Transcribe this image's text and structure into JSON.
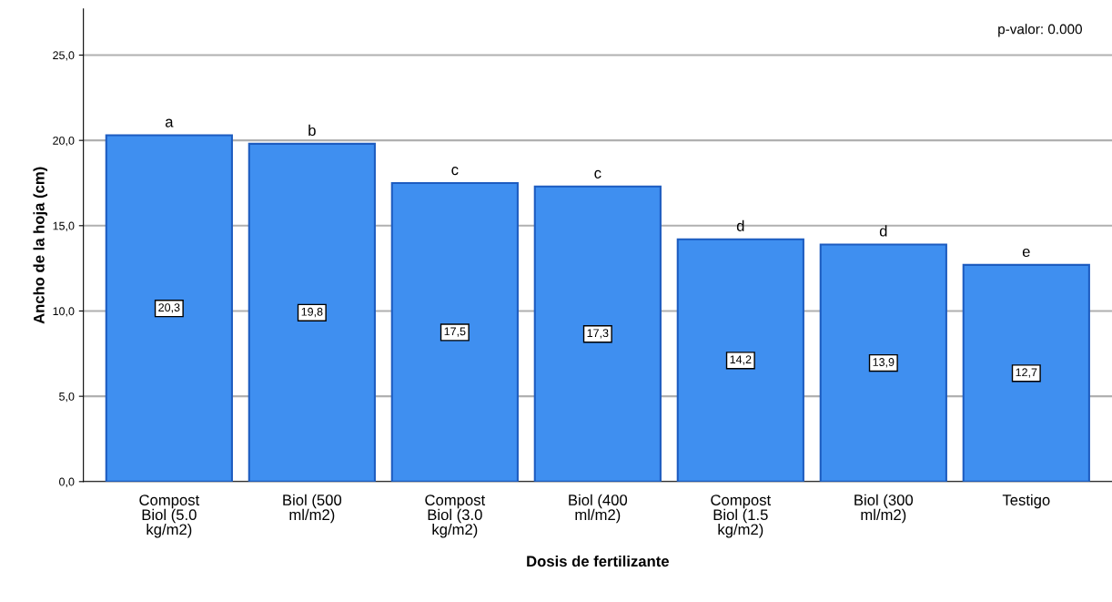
{
  "chart_data": {
    "type": "bar",
    "xlabel": "Dosis de fertilizante",
    "ylabel": "Ancho de la hoja (cm)",
    "categories": [
      "Compost\nBiol (5.0\nkg/m2)",
      "Biol (500\nml/m2)",
      "Compost\nBiol (3.0\nkg/m2)",
      "Biol (400\nml/m2)",
      "Compost\nBiol (1.5\nkg/m2)",
      "Biol (300\nml/m2)",
      "Testigo"
    ],
    "values": [
      20.3,
      19.8,
      17.5,
      17.3,
      14.2,
      13.9,
      12.7
    ],
    "value_labels": [
      "20,3",
      "19,8",
      "17,5",
      "17,3",
      "14,2",
      "13,9",
      "12,7"
    ],
    "color": "#3f8ff0",
    "ylim": [
      0,
      27.7
    ],
    "yticks": [
      {
        "value": 0,
        "label": "0,0"
      },
      {
        "value": 5,
        "label": "5,0"
      },
      {
        "value": 10,
        "label": "10,0"
      },
      {
        "value": 15,
        "label": "15,0"
      },
      {
        "value": 20,
        "label": "20,0"
      },
      {
        "value": 25,
        "label": "25,0"
      }
    ],
    "grid": "y",
    "annotations": [
      {
        "text": "a",
        "x": "Compost\nBiol (5.0\nkg/m2)",
        "y": 20.3
      },
      {
        "text": "b",
        "x": "Biol (500\nml/m2)",
        "y": 19.8
      },
      {
        "text": "c",
        "x": "Compost\nBiol (3.0\nkg/m2)",
        "y": 17.5
      },
      {
        "text": "c",
        "x": "Biol (400\nml/m2)",
        "y": 17.3
      },
      {
        "text": "d",
        "x": "Compost\nBiol (1.5\nkg/m2)",
        "y": 14.2
      },
      {
        "text": "d",
        "x": "Biol (300\nml/m2)",
        "y": 13.9
      },
      {
        "text": "e",
        "x": "Testigo",
        "y": 12.7
      },
      "p-valor: 0.000"
    ]
  }
}
